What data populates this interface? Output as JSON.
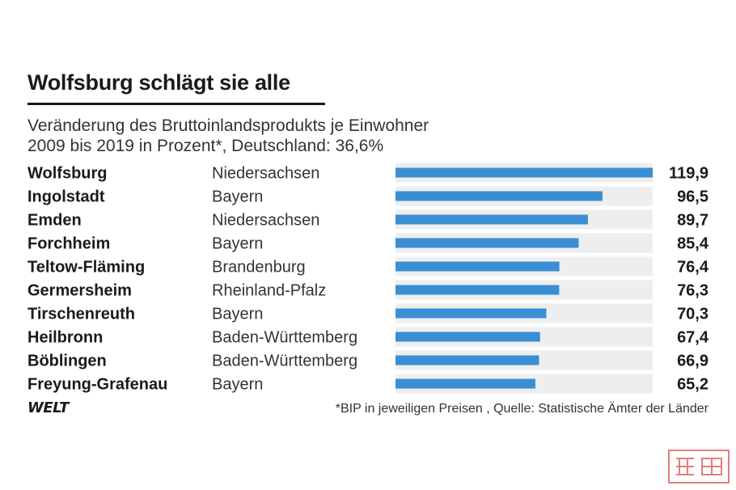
{
  "title": "Wolfsburg schlägt sie alle",
  "subtitle": "Veränderung des Bruttoinlandsprodukts je Einwohner\n2009 bis 2019 in Prozent*, Deutschland: 36,6%",
  "footnote": "*BIP in jeweiligen Preisen , Quelle: Statistische Ämter der Länder",
  "logo": "WELT",
  "colors": {
    "bar": "#3a8fd4",
    "track": "#eeeeee",
    "text": "#1a1a1a",
    "stamp": "#d9534f"
  },
  "chart_data": {
    "type": "bar",
    "orientation": "horizontal",
    "title": "Wolfsburg schlägt sie alle",
    "subtitle": "Veränderung des Bruttoinlandsprodukts je Einwohner 2009 bis 2019 in Prozent*, Deutschland: 36,6%",
    "categories": [
      "Wolfsburg",
      "Ingolstadt",
      "Emden",
      "Forchheim",
      "Teltow-Fläming",
      "Germersheim",
      "Tirschenreuth",
      "Heilbronn",
      "Böblingen",
      "Freyung-Grafenau"
    ],
    "states": [
      "Niedersachsen",
      "Bayern",
      "Niedersachsen",
      "Bayern",
      "Brandenburg",
      "Rheinland-Pfalz",
      "Bayern",
      "Baden-Württemberg",
      "Baden-Württemberg",
      "Bayern"
    ],
    "values": [
      119.9,
      96.5,
      89.7,
      85.4,
      76.4,
      76.3,
      70.3,
      67.4,
      66.9,
      65.2
    ],
    "value_labels": [
      "119,9",
      "96,5",
      "89,7",
      "85,4",
      "76,4",
      "76,3",
      "70,3",
      "67,4",
      "66,9",
      "65,2"
    ],
    "xlim": [
      0,
      119.9
    ],
    "grid": false,
    "legend": "none"
  }
}
